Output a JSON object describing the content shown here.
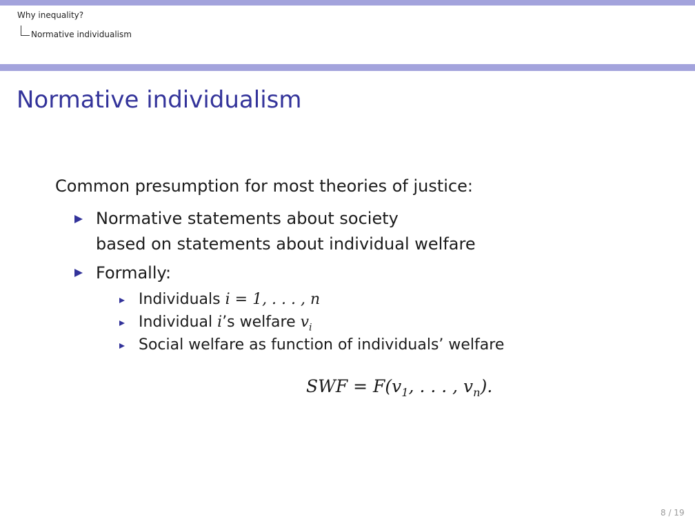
{
  "header": {
    "section": "Why inequality?",
    "subsection": "Normative individualism"
  },
  "frame": {
    "title": "Normative individualism"
  },
  "content": {
    "intro": "Common presumption for most theories of justice:",
    "item1": {
      "line1": "Normative statements about society",
      "line2": "based on statements about individual welfare"
    },
    "item2": {
      "label": "Formally:",
      "sub1": {
        "text": "Individuals ",
        "math": "i = 1, . . . , n"
      },
      "sub2": {
        "text_a": "Individual ",
        "math_i": "i",
        "text_b": "’s welfare ",
        "math_v": "v",
        "math_sub": "i"
      },
      "sub3": {
        "text": "Social welfare as function of individuals’ welfare"
      }
    },
    "equation": {
      "lhs": "SWF = F(v",
      "sub1": "1",
      "mid": ", . . . , v",
      "subn": "n",
      "rhs": ")."
    }
  },
  "footer": {
    "page": "8 / 19"
  },
  "colors": {
    "accent": "#a3a3dc",
    "title": "#33339a"
  }
}
